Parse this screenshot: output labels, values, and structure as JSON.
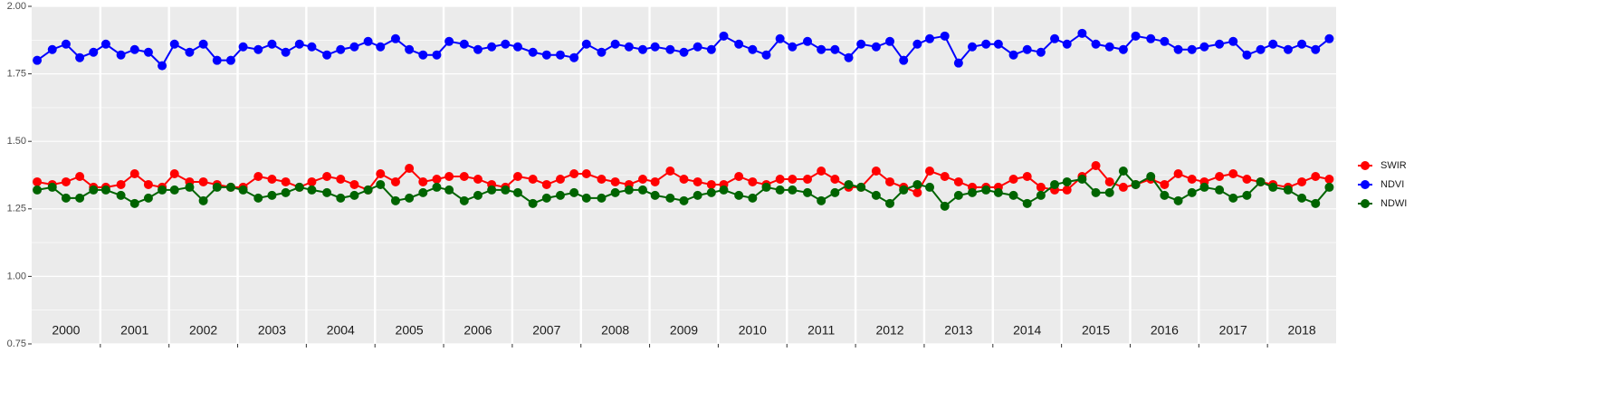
{
  "chart_data": {
    "type": "line",
    "years": [
      "2000",
      "2001",
      "2002",
      "2003",
      "2004",
      "2005",
      "2006",
      "2007",
      "2008",
      "2009",
      "2010",
      "2011",
      "2012",
      "2013",
      "2014",
      "2015",
      "2016",
      "2017",
      "2018"
    ],
    "xlim": [
      2000,
      2019
    ],
    "xticks": [
      2001,
      2002,
      2003,
      2004,
      2005,
      2006,
      2007,
      2008,
      2009,
      2010,
      2011,
      2012,
      2013,
      2014,
      2015,
      2016,
      2017,
      2018
    ],
    "ylim": [
      0.75,
      2.0
    ],
    "yticks": [
      {
        "value": 0.75,
        "label": "0.75"
      },
      {
        "value": 1.0,
        "label": "1.00"
      },
      {
        "value": 1.25,
        "label": "1.25"
      },
      {
        "value": 1.5,
        "label": "1.50"
      },
      {
        "value": 1.75,
        "label": "1.75"
      },
      {
        "value": 2.0,
        "label": "2.00"
      }
    ],
    "grid": true,
    "legend": "right",
    "x": [
      2000.08,
      2000.3,
      2000.5,
      2000.7,
      2000.9,
      2001.08,
      2001.3,
      2001.5,
      2001.7,
      2001.9,
      2002.08,
      2002.3,
      2002.5,
      2002.7,
      2002.9,
      2003.08,
      2003.3,
      2003.5,
      2003.7,
      2003.9,
      2004.08,
      2004.3,
      2004.5,
      2004.7,
      2004.9,
      2005.08,
      2005.3,
      2005.5,
      2005.7,
      2005.9,
      2006.08,
      2006.3,
      2006.5,
      2006.7,
      2006.9,
      2007.08,
      2007.3,
      2007.5,
      2007.7,
      2007.9,
      2008.08,
      2008.3,
      2008.5,
      2008.7,
      2008.9,
      2009.08,
      2009.3,
      2009.5,
      2009.7,
      2009.9,
      2010.08,
      2010.3,
      2010.5,
      2010.7,
      2010.9,
      2011.08,
      2011.3,
      2011.5,
      2011.7,
      2011.9,
      2012.08,
      2012.3,
      2012.5,
      2012.7,
      2012.9,
      2013.08,
      2013.3,
      2013.5,
      2013.7,
      2013.9,
      2014.08,
      2014.3,
      2014.5,
      2014.7,
      2014.9,
      2015.08,
      2015.3,
      2015.5,
      2015.7,
      2015.9,
      2016.08,
      2016.3,
      2016.5,
      2016.7,
      2016.9,
      2017.08,
      2017.3,
      2017.5,
      2017.7,
      2017.9,
      2018.08,
      2018.3,
      2018.5,
      2018.7,
      2018.9
    ],
    "series": [
      {
        "name": "SWIR",
        "color": "#ff0000",
        "values": [
          1.35,
          1.34,
          1.35,
          1.37,
          1.33,
          1.33,
          1.34,
          1.38,
          1.34,
          1.33,
          1.38,
          1.35,
          1.35,
          1.34,
          1.33,
          1.33,
          1.37,
          1.36,
          1.35,
          1.33,
          1.35,
          1.37,
          1.36,
          1.34,
          1.32,
          1.38,
          1.35,
          1.4,
          1.35,
          1.36,
          1.37,
          1.37,
          1.36,
          1.34,
          1.33,
          1.37,
          1.36,
          1.34,
          1.36,
          1.38,
          1.38,
          1.36,
          1.35,
          1.34,
          1.36,
          1.35,
          1.39,
          1.36,
          1.35,
          1.34,
          1.34,
          1.37,
          1.35,
          1.34,
          1.36,
          1.36,
          1.36,
          1.39,
          1.36,
          1.33,
          1.33,
          1.39,
          1.35,
          1.33,
          1.31,
          1.39,
          1.37,
          1.35,
          1.33,
          1.33,
          1.33,
          1.36,
          1.37,
          1.33,
          1.32,
          1.32,
          1.37,
          1.41,
          1.35,
          1.33,
          1.34,
          1.36,
          1.34,
          1.38,
          1.36,
          1.35,
          1.37,
          1.38,
          1.36,
          1.35,
          1.34,
          1.33,
          1.35,
          1.37,
          1.36
        ]
      },
      {
        "name": "NDVI",
        "color": "#0000ff",
        "values": [
          1.8,
          1.84,
          1.86,
          1.81,
          1.83,
          1.86,
          1.82,
          1.84,
          1.83,
          1.78,
          1.86,
          1.83,
          1.86,
          1.8,
          1.8,
          1.85,
          1.84,
          1.86,
          1.83,
          1.86,
          1.85,
          1.82,
          1.84,
          1.85,
          1.87,
          1.85,
          1.88,
          1.84,
          1.82,
          1.82,
          1.87,
          1.86,
          1.84,
          1.85,
          1.86,
          1.85,
          1.83,
          1.82,
          1.82,
          1.81,
          1.86,
          1.83,
          1.86,
          1.85,
          1.84,
          1.85,
          1.84,
          1.83,
          1.85,
          1.84,
          1.89,
          1.86,
          1.84,
          1.82,
          1.88,
          1.85,
          1.87,
          1.84,
          1.84,
          1.81,
          1.86,
          1.85,
          1.87,
          1.8,
          1.86,
          1.88,
          1.89,
          1.79,
          1.85,
          1.86,
          1.86,
          1.82,
          1.84,
          1.83,
          1.88,
          1.86,
          1.9,
          1.86,
          1.85,
          1.84,
          1.89,
          1.88,
          1.87,
          1.84,
          1.84,
          1.85,
          1.86,
          1.87,
          1.82,
          1.84,
          1.86,
          1.84,
          1.86,
          1.84,
          1.88
        ]
      },
      {
        "name": "NDWI",
        "color": "#006400",
        "values": [
          1.32,
          1.33,
          1.29,
          1.29,
          1.32,
          1.32,
          1.3,
          1.27,
          1.29,
          1.32,
          1.32,
          1.33,
          1.28,
          1.33,
          1.33,
          1.32,
          1.29,
          1.3,
          1.31,
          1.33,
          1.32,
          1.31,
          1.29,
          1.3,
          1.32,
          1.34,
          1.28,
          1.29,
          1.31,
          1.33,
          1.32,
          1.28,
          1.3,
          1.32,
          1.32,
          1.31,
          1.27,
          1.29,
          1.3,
          1.31,
          1.29,
          1.29,
          1.31,
          1.32,
          1.32,
          1.3,
          1.29,
          1.28,
          1.3,
          1.31,
          1.32,
          1.3,
          1.29,
          1.33,
          1.32,
          1.32,
          1.31,
          1.28,
          1.31,
          1.34,
          1.33,
          1.3,
          1.27,
          1.32,
          1.34,
          1.33,
          1.26,
          1.3,
          1.31,
          1.32,
          1.31,
          1.3,
          1.27,
          1.3,
          1.34,
          1.35,
          1.36,
          1.31,
          1.31,
          1.39,
          1.34,
          1.37,
          1.3,
          1.28,
          1.31,
          1.33,
          1.32,
          1.29,
          1.3,
          1.35,
          1.33,
          1.32,
          1.29,
          1.27,
          1.33
        ]
      }
    ]
  }
}
